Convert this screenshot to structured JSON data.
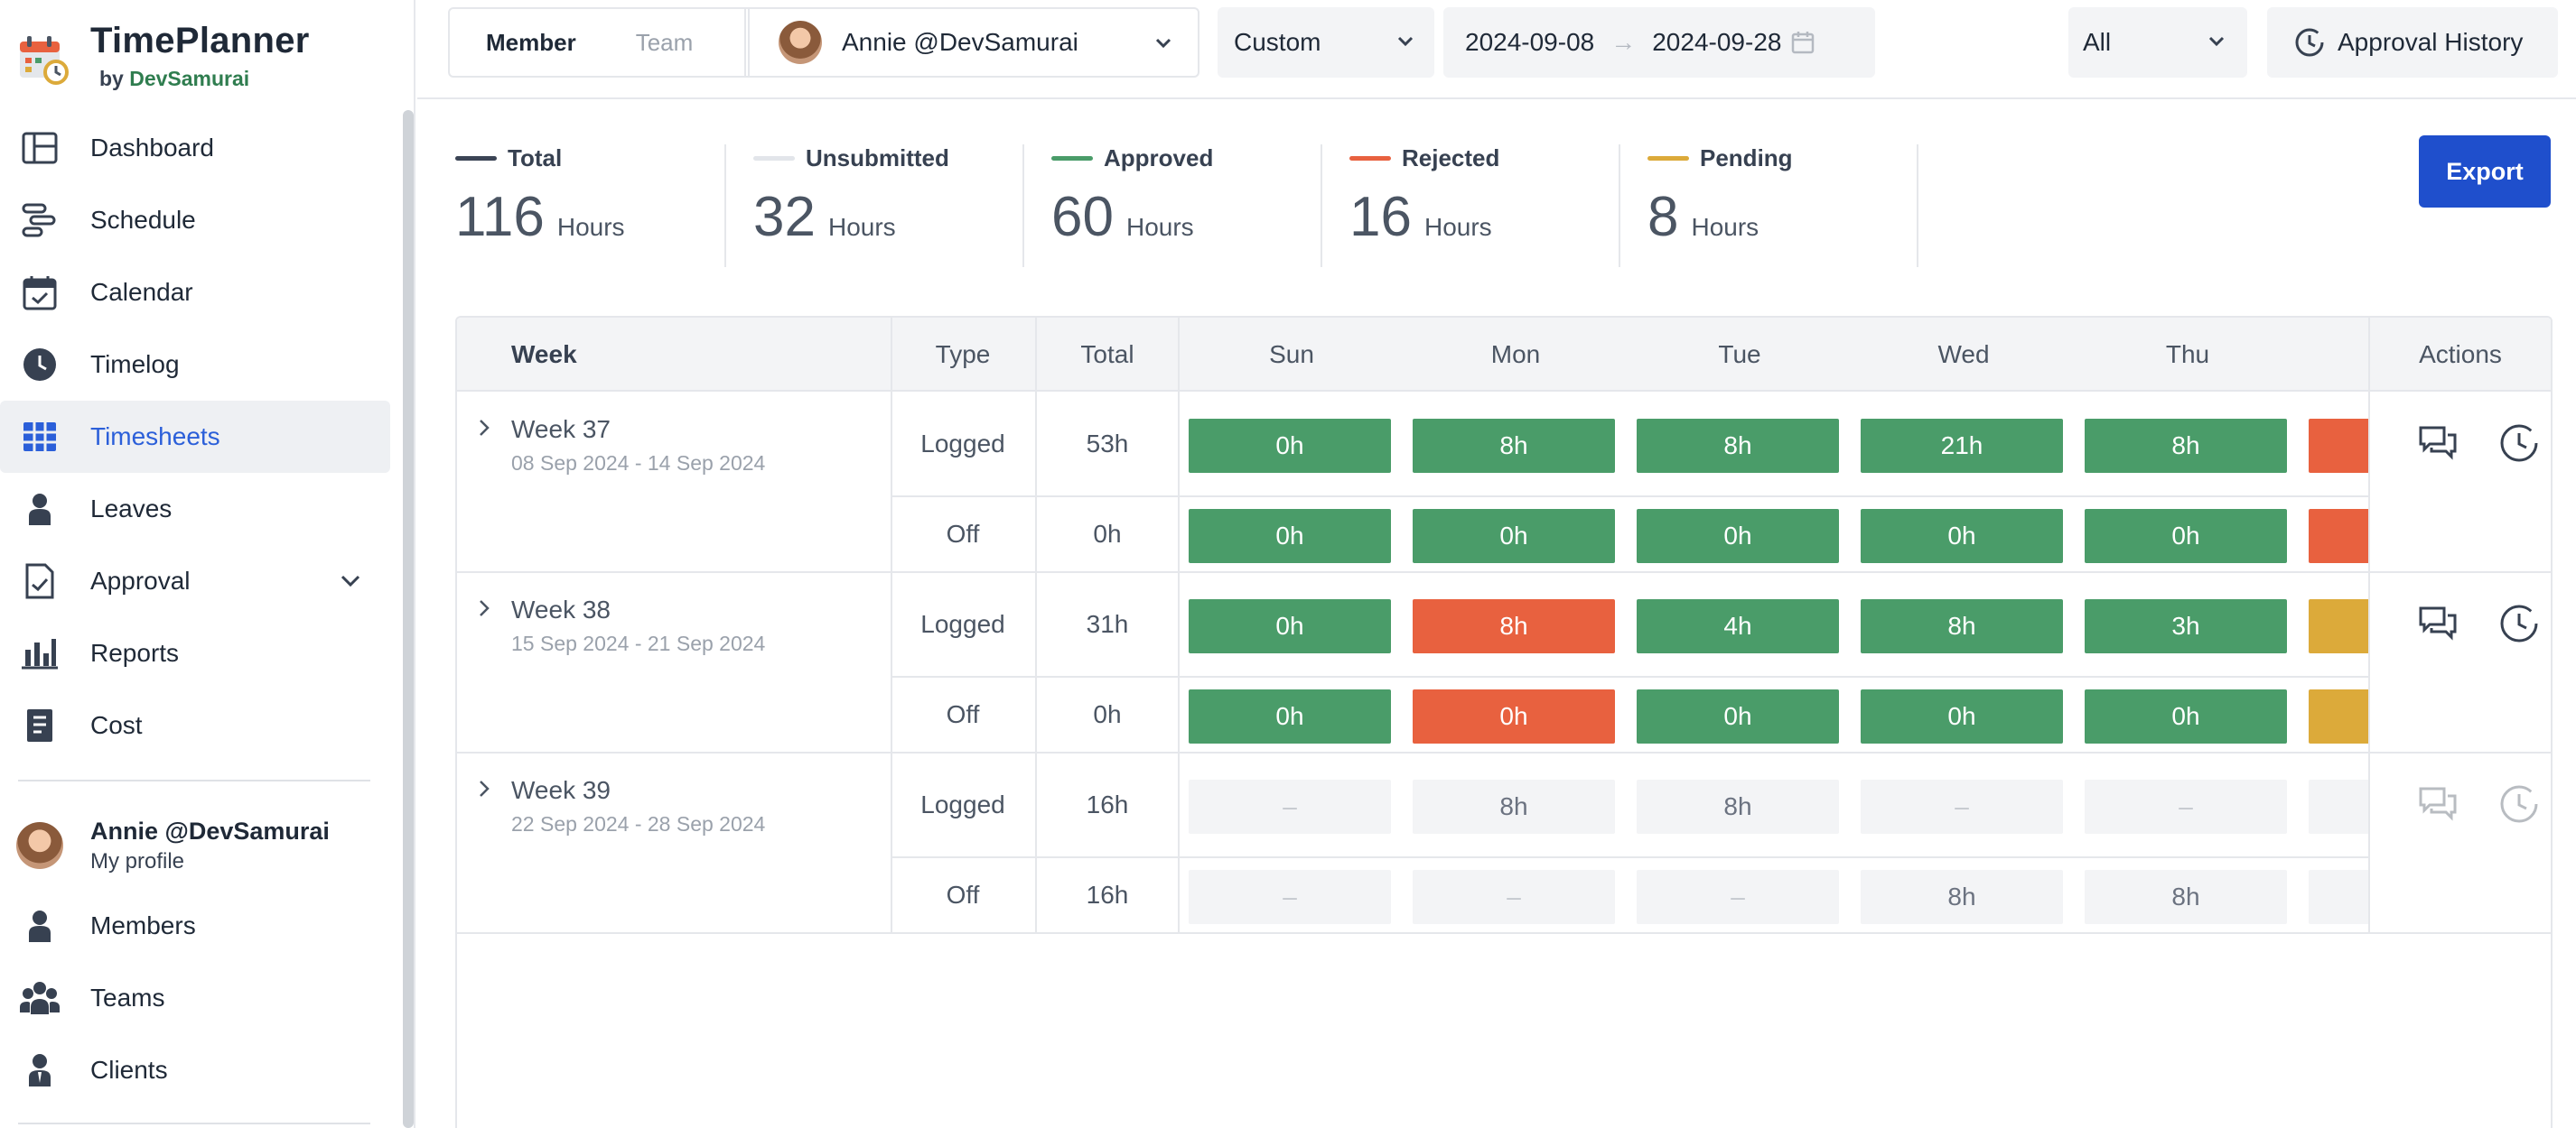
{
  "app": {
    "title": "TimePlanner",
    "by_prefix": "by",
    "by_company": "DevSamurai"
  },
  "sidebar": {
    "items": [
      {
        "label": "Dashboard",
        "icon": "dashboard-icon"
      },
      {
        "label": "Schedule",
        "icon": "schedule-icon"
      },
      {
        "label": "Calendar",
        "icon": "calendar-icon"
      },
      {
        "label": "Timelog",
        "icon": "clock-icon"
      },
      {
        "label": "Timesheets",
        "icon": "grid-icon",
        "active": true
      },
      {
        "label": "Leaves",
        "icon": "person-icon"
      },
      {
        "label": "Approval",
        "icon": "approval-icon"
      },
      {
        "label": "Reports",
        "icon": "bar-chart-icon"
      },
      {
        "label": "Cost",
        "icon": "receipt-icon"
      }
    ],
    "profile": {
      "name": "Annie @DevSamurai",
      "sub": "My profile"
    },
    "lower_items": [
      {
        "label": "Members",
        "icon": "person-icon"
      },
      {
        "label": "Teams",
        "icon": "teams-icon"
      },
      {
        "label": "Clients",
        "icon": "client-icon"
      }
    ]
  },
  "topbar": {
    "member_tab": "Member",
    "team_tab": "Team",
    "selected_member": "Annie @DevSamurai",
    "range_mode": "Custom",
    "date_from": "2024-09-08",
    "date_arrow": "→",
    "date_to": "2024-09-28",
    "status_filter": "All",
    "approval_history": "Approval History"
  },
  "summary": [
    {
      "label": "Total",
      "value": "116",
      "unit": "Hours",
      "color": "#3b4455"
    },
    {
      "label": "Unsubmitted",
      "value": "32",
      "unit": "Hours",
      "color": "#e2e5ea"
    },
    {
      "label": "Approved",
      "value": "60",
      "unit": "Hours",
      "color": "#4a9c69"
    },
    {
      "label": "Rejected",
      "value": "16",
      "unit": "Hours",
      "color": "#e8613f"
    },
    {
      "label": "Pending",
      "value": "8",
      "unit": "Hours",
      "color": "#dcaa3a"
    }
  ],
  "export_label": "Export",
  "table": {
    "headers": {
      "week": "Week",
      "type": "Type",
      "total": "Total",
      "days": [
        "Sun",
        "Mon",
        "Tue",
        "Wed",
        "Thu"
      ],
      "actions": "Actions"
    },
    "weeks": [
      {
        "title": "Week 37",
        "dates": "08 Sep 2024 - 14 Sep 2024",
        "rows": [
          {
            "type": "Logged",
            "total": "53h",
            "cells": [
              [
                "0h",
                "green"
              ],
              [
                "8h",
                "green"
              ],
              [
                "8h",
                "green"
              ],
              [
                "21h",
                "green"
              ],
              [
                "8h",
                "green"
              ],
              [
                "",
                "red"
              ]
            ]
          },
          {
            "type": "Off",
            "total": "0h",
            "cells": [
              [
                "0h",
                "green"
              ],
              [
                "0h",
                "green"
              ],
              [
                "0h",
                "green"
              ],
              [
                "0h",
                "green"
              ],
              [
                "0h",
                "green"
              ],
              [
                "",
                "red"
              ]
            ]
          }
        ],
        "actions_enabled": true
      },
      {
        "title": "Week 38",
        "dates": "15 Sep 2024 - 21 Sep 2024",
        "rows": [
          {
            "type": "Logged",
            "total": "31h",
            "cells": [
              [
                "0h",
                "green"
              ],
              [
                "8h",
                "red"
              ],
              [
                "4h",
                "green"
              ],
              [
                "8h",
                "green"
              ],
              [
                "3h",
                "green"
              ],
              [
                "",
                "yellow"
              ]
            ]
          },
          {
            "type": "Off",
            "total": "0h",
            "cells": [
              [
                "0h",
                "green"
              ],
              [
                "0h",
                "red"
              ],
              [
                "0h",
                "green"
              ],
              [
                "0h",
                "green"
              ],
              [
                "0h",
                "green"
              ],
              [
                "",
                "yellow"
              ]
            ]
          }
        ],
        "actions_enabled": true
      },
      {
        "title": "Week 39",
        "dates": "22 Sep 2024 - 28 Sep 2024",
        "rows": [
          {
            "type": "Logged",
            "total": "16h",
            "cells": [
              [
                "–",
                "empty"
              ],
              [
                "8h",
                "empty"
              ],
              [
                "8h",
                "empty"
              ],
              [
                "–",
                "empty"
              ],
              [
                "–",
                "empty"
              ],
              [
                "",
                "empty"
              ]
            ]
          },
          {
            "type": "Off",
            "total": "16h",
            "cells": [
              [
                "–",
                "empty"
              ],
              [
                "–",
                "empty"
              ],
              [
                "–",
                "empty"
              ],
              [
                "8h",
                "empty"
              ],
              [
                "8h",
                "empty"
              ],
              [
                "",
                "empty"
              ]
            ]
          }
        ],
        "actions_enabled": false
      }
    ]
  }
}
